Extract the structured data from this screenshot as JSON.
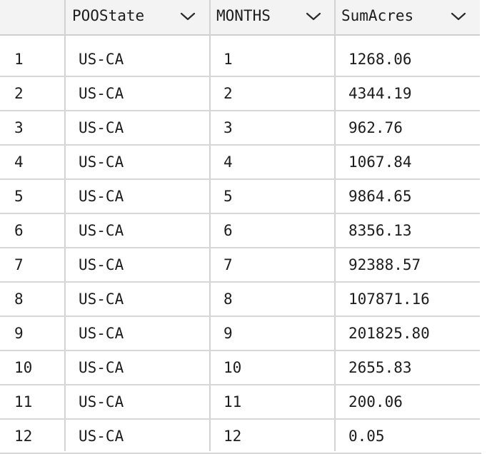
{
  "table": {
    "columns": [
      {
        "name": "POOState",
        "icon": "chevron-down-icon"
      },
      {
        "name": "MONTHS",
        "icon": "chevron-down-icon"
      },
      {
        "name": "SumAcres",
        "icon": "chevron-down-icon"
      }
    ],
    "rows": [
      {
        "index": "1",
        "state": "US-CA",
        "month": "1",
        "acres": "1268.06"
      },
      {
        "index": "2",
        "state": "US-CA",
        "month": "2",
        "acres": "4344.19"
      },
      {
        "index": "3",
        "state": "US-CA",
        "month": "3",
        "acres": "962.76"
      },
      {
        "index": "4",
        "state": "US-CA",
        "month": "4",
        "acres": "1067.84"
      },
      {
        "index": "5",
        "state": "US-CA",
        "month": "5",
        "acres": "9864.65"
      },
      {
        "index": "6",
        "state": "US-CA",
        "month": "6",
        "acres": "8356.13"
      },
      {
        "index": "7",
        "state": "US-CA",
        "month": "7",
        "acres": "92388.57"
      },
      {
        "index": "8",
        "state": "US-CA",
        "month": "8",
        "acres": "107871.16"
      },
      {
        "index": "9",
        "state": "US-CA",
        "month": "9",
        "acres": "201825.80"
      },
      {
        "index": "10",
        "state": "US-CA",
        "month": "10",
        "acres": "2655.83"
      },
      {
        "index": "11",
        "state": "US-CA",
        "month": "11",
        "acres": "200.06"
      },
      {
        "index": "12",
        "state": "US-CA",
        "month": "12",
        "acres": "0.05"
      }
    ]
  },
  "colors": {
    "header_bg": "#f3f3f3",
    "grid_line": "#d3d3d3",
    "text": "#1c1c1c"
  }
}
